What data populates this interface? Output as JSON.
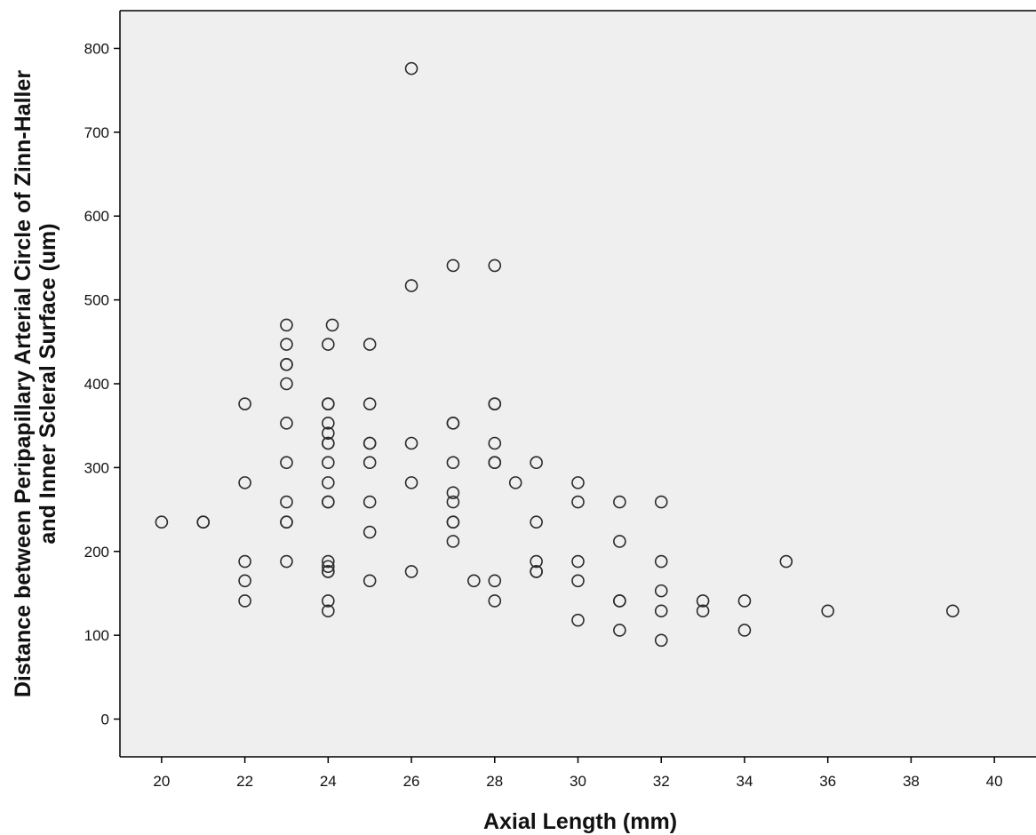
{
  "chart_data": {
    "type": "scatter",
    "title": "",
    "xlabel": "Axial Length (mm)",
    "ylabel": [
      "Distance between Peripapillary Arterial Circle of Zinn-Haller",
      "and Inner Scleral Surface (um)"
    ],
    "xlim": [
      19,
      41
    ],
    "ylim": [
      -45,
      845
    ],
    "xticks": [
      20,
      22,
      24,
      26,
      28,
      30,
      32,
      34,
      36,
      38,
      40
    ],
    "yticks": [
      0,
      100,
      200,
      300,
      400,
      500,
      600,
      700,
      800
    ],
    "grid": false,
    "legend": "none",
    "colors": {
      "plot_background": "#efefef",
      "marker_edge": "#2a2a2a",
      "axis": "#000000"
    },
    "points": [
      [
        20,
        235
      ],
      [
        21,
        235
      ],
      [
        21,
        235
      ],
      [
        22,
        376
      ],
      [
        22,
        282
      ],
      [
        22,
        188
      ],
      [
        22,
        165
      ],
      [
        22,
        141
      ],
      [
        23,
        470
      ],
      [
        23,
        447
      ],
      [
        23,
        423
      ],
      [
        23,
        423
      ],
      [
        23,
        400
      ],
      [
        23,
        353
      ],
      [
        23,
        306
      ],
      [
        23,
        259
      ],
      [
        23,
        235
      ],
      [
        23,
        235
      ],
      [
        23,
        188
      ],
      [
        24.1,
        470
      ],
      [
        24,
        447
      ],
      [
        24,
        376
      ],
      [
        24,
        376
      ],
      [
        24,
        353
      ],
      [
        24,
        341
      ],
      [
        24,
        329
      ],
      [
        24,
        329
      ],
      [
        24,
        306
      ],
      [
        24,
        282
      ],
      [
        24,
        259
      ],
      [
        24,
        259
      ],
      [
        24,
        188
      ],
      [
        24,
        182
      ],
      [
        24,
        176
      ],
      [
        24,
        176
      ],
      [
        24,
        141
      ],
      [
        24,
        129
      ],
      [
        25,
        447
      ],
      [
        25,
        376
      ],
      [
        25,
        329
      ],
      [
        25,
        329
      ],
      [
        25,
        306
      ],
      [
        25,
        259
      ],
      [
        25,
        223
      ],
      [
        25,
        165
      ],
      [
        26,
        776
      ],
      [
        26,
        517
      ],
      [
        26,
        329
      ],
      [
        26,
        282
      ],
      [
        26,
        176
      ],
      [
        27,
        541
      ],
      [
        27,
        353
      ],
      [
        27,
        353
      ],
      [
        27,
        306
      ],
      [
        27,
        270
      ],
      [
        27,
        259
      ],
      [
        27,
        235
      ],
      [
        27,
        235
      ],
      [
        27,
        212
      ],
      [
        27.5,
        165
      ],
      [
        28,
        541
      ],
      [
        28,
        376
      ],
      [
        28,
        376
      ],
      [
        28,
        329
      ],
      [
        28,
        306
      ],
      [
        28,
        306
      ],
      [
        28,
        165
      ],
      [
        28,
        141
      ],
      [
        28.5,
        282
      ],
      [
        29,
        306
      ],
      [
        29,
        235
      ],
      [
        29,
        188
      ],
      [
        29,
        176
      ],
      [
        29,
        176
      ],
      [
        30,
        282
      ],
      [
        30,
        259
      ],
      [
        30,
        188
      ],
      [
        30,
        165
      ],
      [
        30,
        118
      ],
      [
        31,
        259
      ],
      [
        31,
        212
      ],
      [
        31,
        141
      ],
      [
        31,
        141
      ],
      [
        31,
        106
      ],
      [
        32,
        259
      ],
      [
        32,
        188
      ],
      [
        32,
        153
      ],
      [
        32,
        129
      ],
      [
        32,
        94
      ],
      [
        33,
        141
      ],
      [
        33,
        129
      ],
      [
        34,
        141
      ],
      [
        34,
        106
      ],
      [
        35,
        188
      ],
      [
        36,
        129
      ],
      [
        39,
        129
      ]
    ]
  }
}
